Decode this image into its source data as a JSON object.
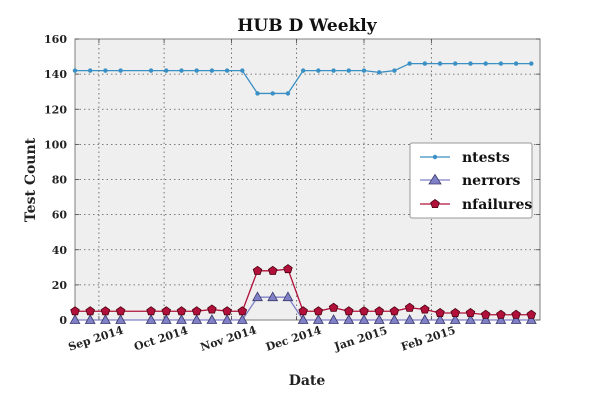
{
  "chart_data": {
    "type": "line",
    "title": "HUB D Weekly",
    "xlabel": "Date",
    "ylabel": "Test Count",
    "ylim": [
      0,
      160
    ],
    "yticks": [
      0,
      20,
      40,
      60,
      80,
      100,
      120,
      140,
      160
    ],
    "xlim": [
      "2014-08-21",
      "2015-03-23"
    ],
    "xticks": [
      {
        "label": "Sep 2014",
        "date": "2014-09-01"
      },
      {
        "label": "Oct 2014",
        "date": "2014-10-01"
      },
      {
        "label": "Nov 2014",
        "date": "2014-11-01"
      },
      {
        "label": "Dec 2014",
        "date": "2014-12-01"
      },
      {
        "label": "Jan 2015",
        "date": "2015-01-01"
      },
      {
        "label": "Feb 2015",
        "date": "2015-02-01"
      }
    ],
    "grid": true,
    "legend_position": "center-right",
    "x": [
      "2014-08-21",
      "2014-08-28",
      "2014-09-04",
      "2014-09-11",
      "2014-09-25",
      "2014-10-02",
      "2014-10-09",
      "2014-10-16",
      "2014-10-23",
      "2014-10-30",
      "2014-11-06",
      "2014-11-13",
      "2014-11-20",
      "2014-11-27",
      "2014-12-04",
      "2014-12-11",
      "2014-12-18",
      "2014-12-25",
      "2015-01-01",
      "2015-01-08",
      "2015-01-15",
      "2015-01-22",
      "2015-01-29",
      "2015-02-05",
      "2015-02-12",
      "2015-02-19",
      "2015-02-26",
      "2015-03-05",
      "2015-03-12",
      "2015-03-19"
    ],
    "series": [
      {
        "name": "ntests",
        "color": "#3a8fc4",
        "marker": "circle",
        "values": [
          142,
          142,
          142,
          142,
          142,
          142,
          142,
          142,
          142,
          142,
          142,
          129,
          129,
          129,
          142,
          142,
          142,
          142,
          142,
          141,
          142,
          146,
          146,
          146,
          146,
          146,
          146,
          146,
          146,
          146
        ]
      },
      {
        "name": "nerrors",
        "color": "#8080c8",
        "marker": "triangle",
        "values": [
          0,
          0,
          0,
          0,
          0,
          0,
          0,
          0,
          0,
          0,
          0,
          13,
          13,
          13,
          0,
          0,
          0,
          0,
          0,
          0,
          0,
          0,
          0,
          0,
          0,
          0,
          0,
          0,
          0,
          0
        ]
      },
      {
        "name": "nfailures",
        "color": "#b0103a",
        "marker": "pentagon",
        "values": [
          5,
          5,
          5,
          5,
          5,
          5,
          5,
          5,
          6,
          5,
          5,
          28,
          28,
          29,
          5,
          5,
          7,
          5,
          5,
          5,
          5,
          7,
          6,
          4,
          4,
          4,
          3,
          3,
          3,
          3
        ]
      }
    ]
  }
}
